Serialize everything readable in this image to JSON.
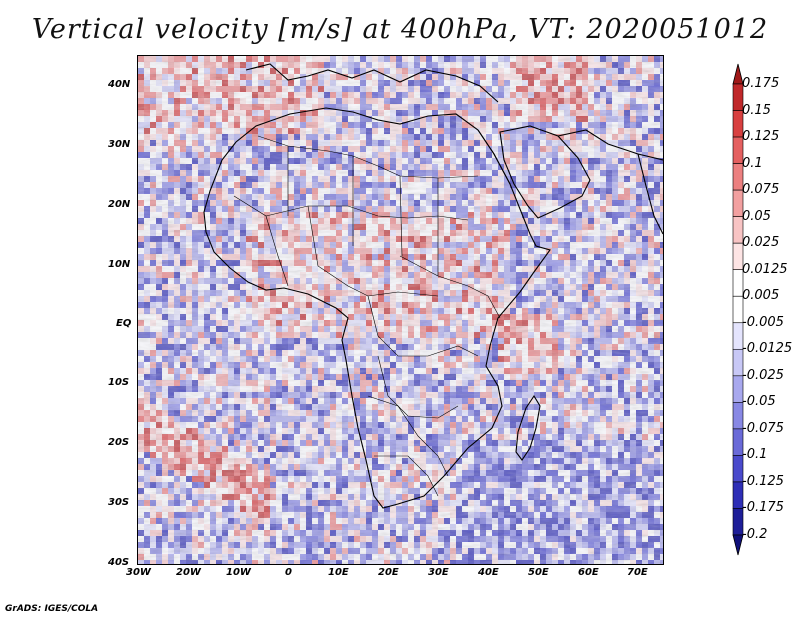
{
  "title": "Vertical velocity [m/s] at 400hPa, VT: 2020051012",
  "credit": "GrADS: IGES/COLA",
  "lat_labels": [
    "40N",
    "30N",
    "20N",
    "10N",
    "EQ",
    "10S",
    "20S",
    "30S",
    "40S"
  ],
  "lon_labels": [
    "30W",
    "20W",
    "10W",
    "0",
    "10E",
    "20E",
    "30E",
    "40E",
    "50E",
    "60E",
    "70E"
  ],
  "colorbar": {
    "labels": [
      "0.175",
      "0.15",
      "0.125",
      "0.1",
      "0.075",
      "0.05",
      "0.025",
      "0.0125",
      "0.005",
      "-0.005",
      "-0.0125",
      "-0.025",
      "-0.05",
      "-0.075",
      "-0.1",
      "-0.125",
      "-0.175",
      "-0.2"
    ],
    "colors": [
      "#a01818",
      "#c0282a",
      "#d84040",
      "#e46060",
      "#ec8080",
      "#f2a0a0",
      "#f8c4c4",
      "#fde4e4",
      "#ffffff",
      "#ffffff",
      "#e4e4fd",
      "#c8c8f6",
      "#a8a8ee",
      "#8888e4",
      "#6a6ad8",
      "#4a4acc",
      "#2e2eb6",
      "#1e1e98",
      "#10107a"
    ]
  },
  "map": {
    "domain": {
      "lon": [
        -30,
        75
      ],
      "lat": [
        -40,
        45
      ]
    },
    "land_color": "#e8e8f6",
    "ocean_color": "#e2e2f2"
  }
}
